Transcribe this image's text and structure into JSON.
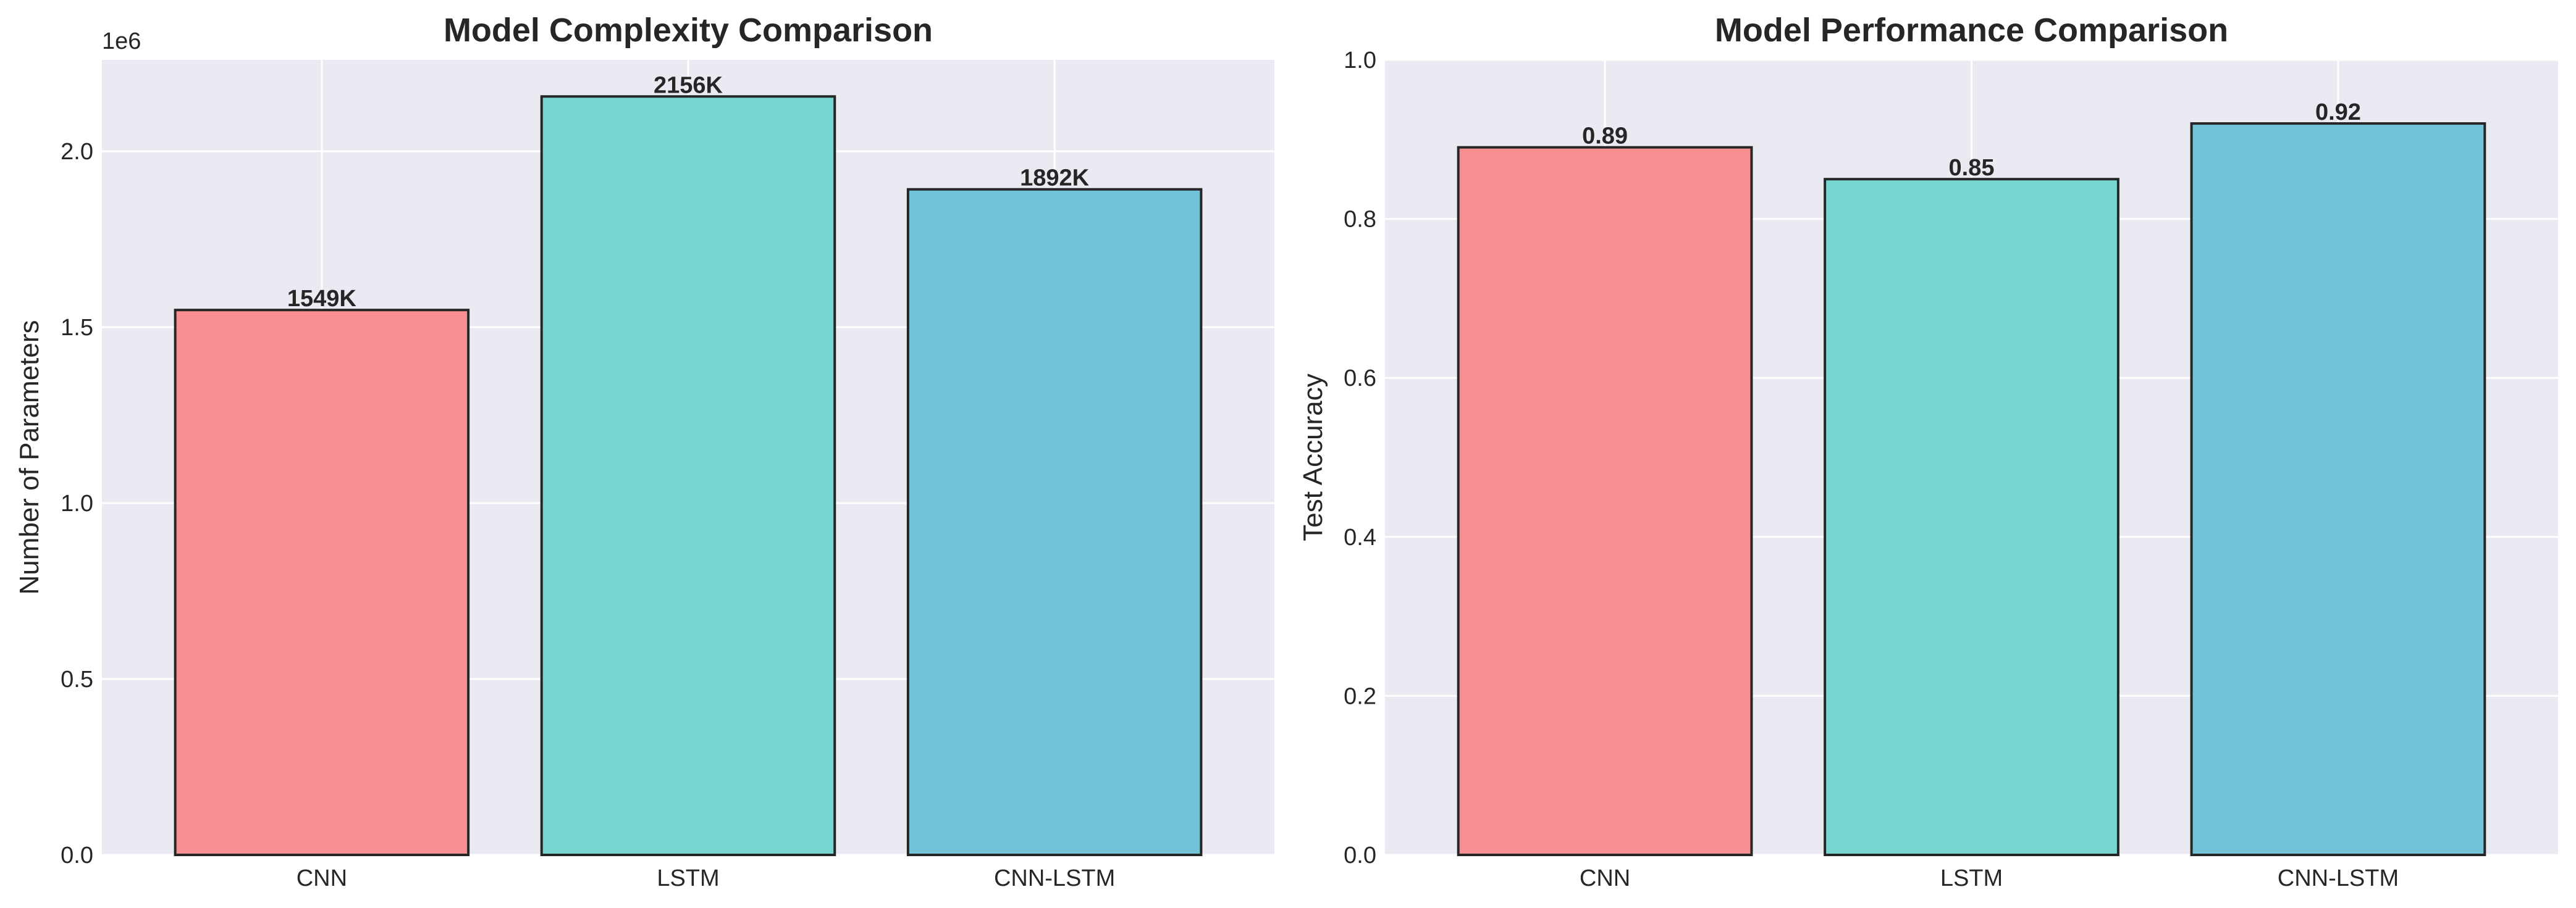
{
  "chart_data": [
    {
      "type": "bar",
      "title": "Model Complexity Comparison",
      "xlabel": "",
      "ylabel": "Number of Parameters",
      "categories": [
        "CNN",
        "LSTM",
        "CNN-LSTM"
      ],
      "values": [
        1549000,
        2156000,
        1892000
      ],
      "value_labels": [
        "1549K",
        "2156K",
        "1892K"
      ],
      "ylim": [
        0,
        2260000
      ],
      "yticks": [
        0,
        500000,
        1000000,
        1500000,
        2000000
      ],
      "ytick_labels": [
        "0.0",
        "0.5",
        "1.0",
        "1.5",
        "2.0"
      ],
      "offset_text": "1e6",
      "colors": [
        "#f8898b",
        "#72d5ce",
        "#6bc0d6"
      ],
      "grid": true
    },
    {
      "type": "bar",
      "title": "Model Performance Comparison",
      "xlabel": "",
      "ylabel": "Test Accuracy",
      "categories": [
        "CNN",
        "LSTM",
        "CNN-LSTM"
      ],
      "values": [
        0.89,
        0.85,
        0.92
      ],
      "value_labels": [
        "0.89",
        "0.85",
        "0.92"
      ],
      "ylim": [
        0,
        1.0
      ],
      "yticks": [
        0,
        0.2,
        0.4,
        0.6,
        0.8,
        1.0
      ],
      "ytick_labels": [
        "0.0",
        "0.2",
        "0.4",
        "0.6",
        "0.8",
        "1.0"
      ],
      "colors": [
        "#f8898b",
        "#72d5ce",
        "#6bc0d6"
      ],
      "grid": true
    }
  ]
}
